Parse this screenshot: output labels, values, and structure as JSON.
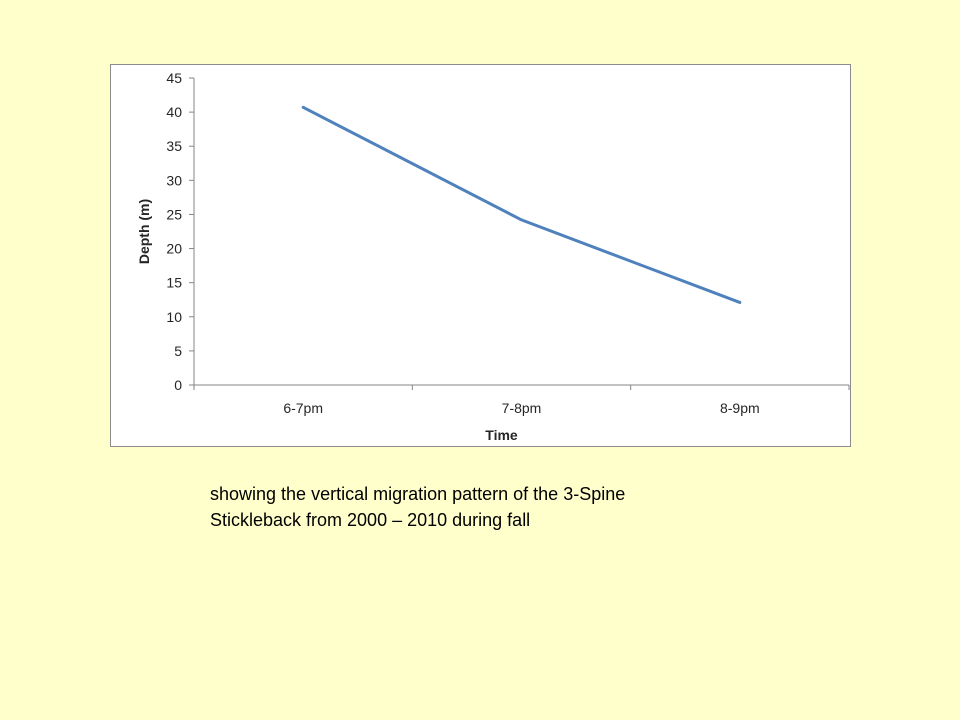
{
  "chart_data": {
    "type": "line",
    "categories": [
      "6-7pm",
      "7-8pm",
      "8-9pm"
    ],
    "series": [
      {
        "values": [
          40.7,
          24.2,
          12.1
        ],
        "color": "#4f81bd"
      }
    ],
    "xlabel": "Time",
    "ylabel": "Depth (m)",
    "ylim": [
      0,
      45
    ],
    "yticks": [
      0,
      5,
      10,
      15,
      20,
      25,
      30,
      35,
      40,
      45
    ],
    "grid": false,
    "legend": "none"
  },
  "caption": {
    "line1": "showing the vertical migration pattern of the 3-Spine",
    "line2": "Stickleback from 2000 – 2010 during fall"
  }
}
